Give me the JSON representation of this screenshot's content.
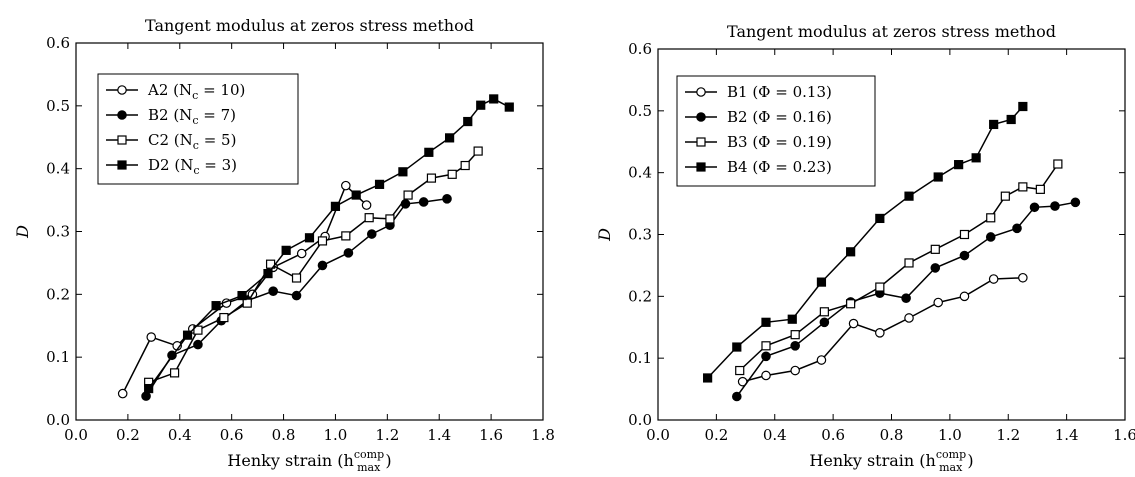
{
  "chart_data": [
    {
      "type": "line",
      "title": "Tangent modulus at zeros stress method",
      "xlabel": "Henky strain (h",
      "xlabel_sup": "comp",
      "xlabel_sub": "max",
      "xlabel_end": ")",
      "ylabel": "D",
      "xlim": [
        0.0,
        1.8
      ],
      "ylim": [
        0.0,
        0.6
      ],
      "xticks": [
        "0.0",
        "0.2",
        "0.4",
        "0.6",
        "0.8",
        "1.0",
        "1.2",
        "1.4",
        "1.6",
        "1.8"
      ],
      "yticks": [
        "0.0",
        "0.1",
        "0.2",
        "0.3",
        "0.4",
        "0.5",
        "0.6"
      ],
      "legend_position": "top-left",
      "series": [
        {
          "name": "A2 (N",
          "name_sub": "c",
          "name_tail": " = 10)",
          "marker": "circle-open",
          "x": [
            0.18,
            0.29,
            0.39,
            0.45,
            0.58,
            0.68,
            0.76,
            0.87,
            0.96,
            1.04,
            1.12
          ],
          "y": [
            0.042,
            0.132,
            0.118,
            0.145,
            0.186,
            0.2,
            0.243,
            0.265,
            0.292,
            0.373,
            0.342
          ]
        },
        {
          "name": "B2 (N",
          "name_sub": "c",
          "name_tail": " = 7)",
          "marker": "circle-filled",
          "x": [
            0.27,
            0.37,
            0.47,
            0.56,
            0.66,
            0.76,
            0.85,
            0.95,
            1.05,
            1.14,
            1.21,
            1.27,
            1.34,
            1.43
          ],
          "y": [
            0.038,
            0.103,
            0.12,
            0.158,
            0.19,
            0.205,
            0.198,
            0.246,
            0.266,
            0.296,
            0.31,
            0.344,
            0.347,
            0.352
          ]
        },
        {
          "name": "C2 (N",
          "name_sub": "c",
          "name_tail": " = 5)",
          "marker": "square-open",
          "x": [
            0.28,
            0.38,
            0.47,
            0.57,
            0.66,
            0.75,
            0.85,
            0.95,
            1.04,
            1.13,
            1.21,
            1.28,
            1.37,
            1.45,
            1.5,
            1.55
          ],
          "y": [
            0.06,
            0.075,
            0.143,
            0.163,
            0.186,
            0.248,
            0.226,
            0.285,
            0.293,
            0.322,
            0.32,
            0.358,
            0.385,
            0.391,
            0.405,
            0.428
          ]
        },
        {
          "name": "D2 (N",
          "name_sub": "c",
          "name_tail": " = 3)",
          "marker": "square-filled",
          "x": [
            0.28,
            0.43,
            0.54,
            0.64,
            0.74,
            0.81,
            0.9,
            1.0,
            1.08,
            1.17,
            1.26,
            1.36,
            1.44,
            1.51,
            1.56,
            1.61,
            1.67
          ],
          "y": [
            0.05,
            0.135,
            0.182,
            0.198,
            0.233,
            0.27,
            0.29,
            0.34,
            0.358,
            0.375,
            0.395,
            0.426,
            0.449,
            0.475,
            0.501,
            0.511,
            0.498
          ]
        }
      ]
    },
    {
      "type": "line",
      "title": "Tangent modulus at zeros stress method",
      "xlabel": "Henky strain (h",
      "xlabel_sup": "comp",
      "xlabel_sub": "max",
      "xlabel_end": ")",
      "ylabel": "D",
      "xlim": [
        0.0,
        1.6
      ],
      "ylim": [
        0.0,
        0.6
      ],
      "xticks": [
        "0.0",
        "0.2",
        "0.4",
        "0.6",
        "0.8",
        "1.0",
        "1.2",
        "1.4",
        "1.6"
      ],
      "yticks": [
        "0.0",
        "0.1",
        "0.2",
        "0.3",
        "0.4",
        "0.5",
        "0.6"
      ],
      "legend_position": "top-left",
      "series": [
        {
          "name": "B1 (Φ = 0.13)",
          "marker": "circle-open",
          "x": [
            0.29,
            0.37,
            0.47,
            0.56,
            0.67,
            0.76,
            0.86,
            0.96,
            1.05,
            1.15,
            1.25
          ],
          "y": [
            0.062,
            0.072,
            0.08,
            0.097,
            0.156,
            0.141,
            0.165,
            0.19,
            0.2,
            0.228,
            0.23
          ]
        },
        {
          "name": "B2 (Φ = 0.16)",
          "marker": "circle-filled",
          "x": [
            0.27,
            0.37,
            0.47,
            0.57,
            0.66,
            0.76,
            0.85,
            0.95,
            1.05,
            1.14,
            1.23,
            1.29,
            1.36,
            1.43
          ],
          "y": [
            0.038,
            0.103,
            0.12,
            0.158,
            0.191,
            0.205,
            0.197,
            0.246,
            0.266,
            0.296,
            0.31,
            0.344,
            0.346,
            0.352
          ]
        },
        {
          "name": "B3 (Φ = 0.19)",
          "marker": "square-open",
          "x": [
            0.28,
            0.37,
            0.47,
            0.57,
            0.66,
            0.76,
            0.86,
            0.95,
            1.05,
            1.14,
            1.19,
            1.25,
            1.31,
            1.37
          ],
          "y": [
            0.08,
            0.12,
            0.138,
            0.175,
            0.188,
            0.215,
            0.254,
            0.276,
            0.3,
            0.327,
            0.362,
            0.377,
            0.373,
            0.414
          ]
        },
        {
          "name": "B4 (Φ = 0.23)",
          "marker": "square-filled",
          "x": [
            0.17,
            0.27,
            0.37,
            0.46,
            0.56,
            0.66,
            0.76,
            0.86,
            0.96,
            1.03,
            1.09,
            1.15,
            1.21,
            1.25
          ],
          "y": [
            0.068,
            0.118,
            0.158,
            0.163,
            0.223,
            0.272,
            0.326,
            0.362,
            0.393,
            0.413,
            0.424,
            0.478,
            0.486,
            0.507
          ]
        }
      ]
    }
  ]
}
